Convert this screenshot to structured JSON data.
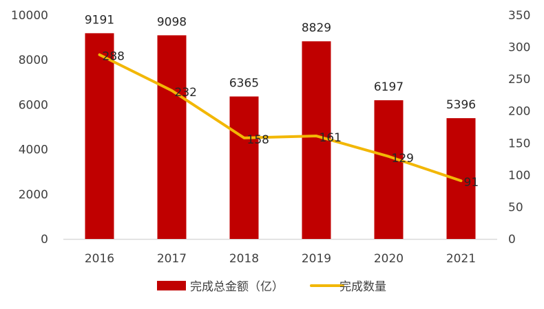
{
  "chart_data": {
    "type": "bar",
    "categories": [
      "2016",
      "2017",
      "2018",
      "2019",
      "2020",
      "2021"
    ],
    "series": [
      {
        "name": "完成总金额（亿）",
        "type": "bar",
        "axis": "left",
        "color": "#c00000",
        "values": [
          9191,
          9098,
          6365,
          8829,
          6197,
          5396
        ]
      },
      {
        "name": "完成数量",
        "type": "line",
        "axis": "right",
        "color": "#f2b705",
        "values": [
          288,
          232,
          158,
          161,
          129,
          91
        ]
      }
    ],
    "y_left": {
      "min": 0,
      "max": 10000,
      "ticks": [
        "0",
        "2000",
        "4000",
        "6000",
        "8000",
        "10000"
      ]
    },
    "y_right": {
      "min": 0,
      "max": 350,
      "ticks": [
        "0",
        "50",
        "100",
        "150",
        "200",
        "250",
        "300",
        "350"
      ]
    },
    "title": "",
    "xlabel": "",
    "ylabel": "",
    "grid": false,
    "legend_position": "bottom"
  }
}
